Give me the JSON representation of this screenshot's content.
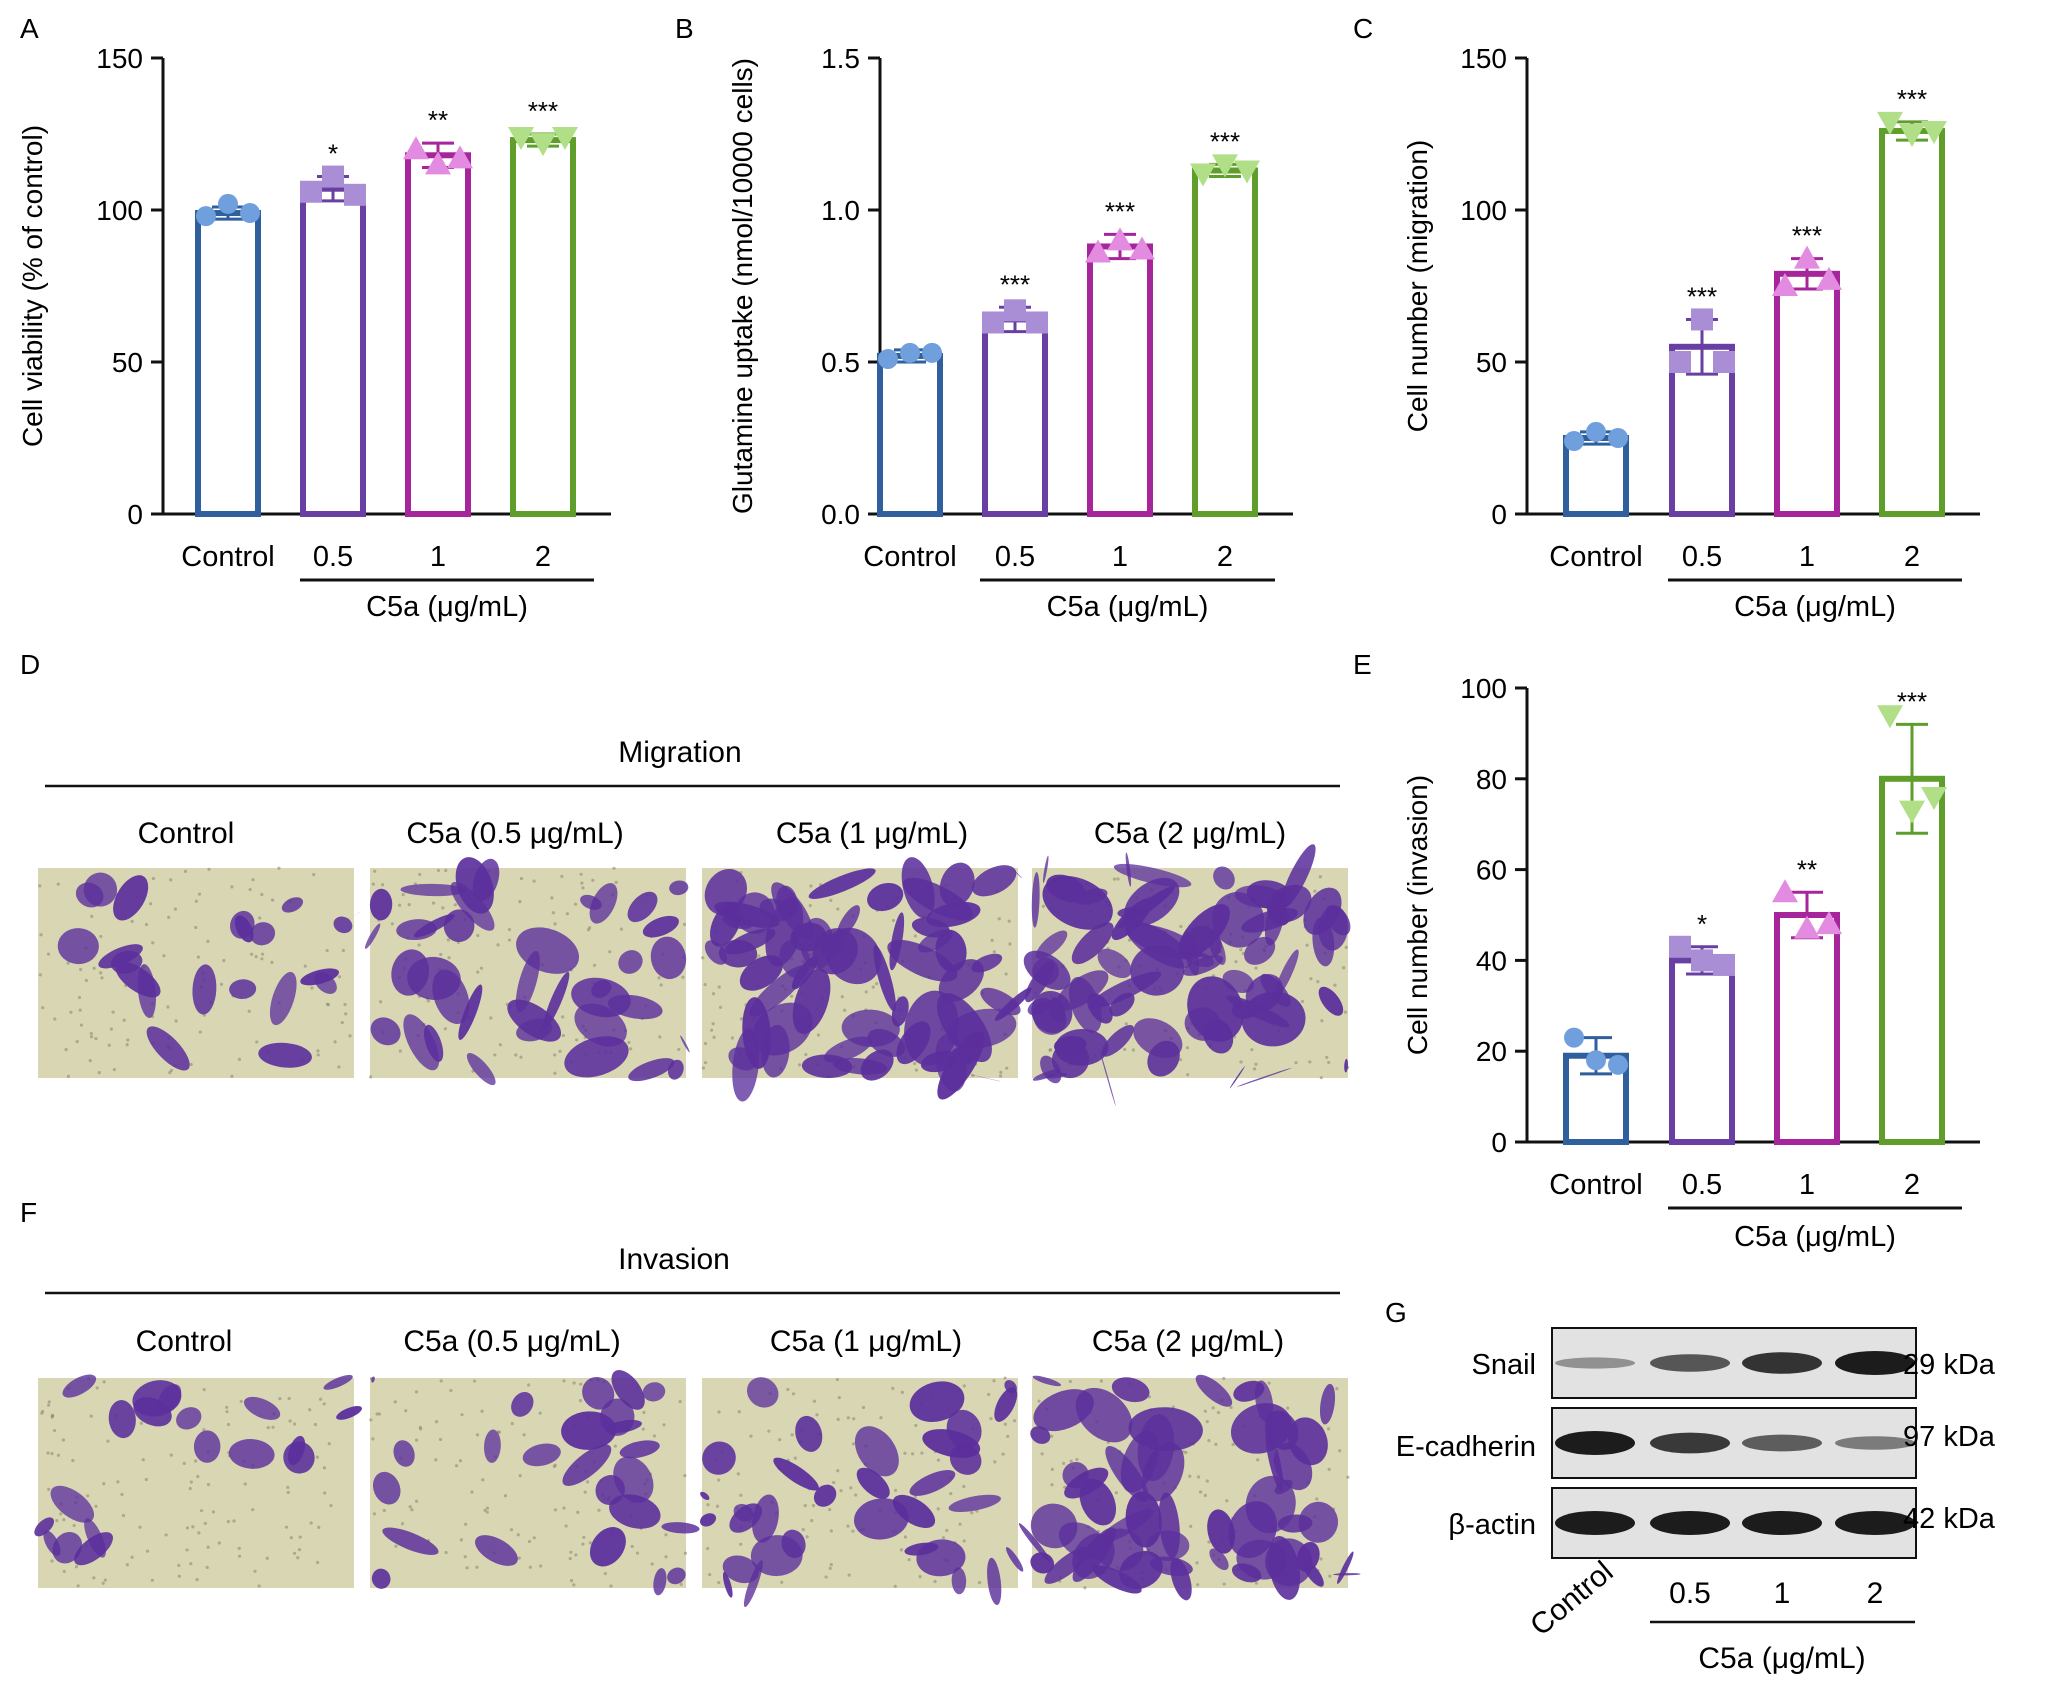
{
  "chart_data": [
    {
      "panel": "A",
      "type": "bar",
      "ylabel": "Cell viability (% of control)",
      "ylim": [
        0,
        150
      ],
      "yticks": [
        0,
        50,
        100,
        150
      ],
      "categories": [
        "Control",
        "0.5",
        "1",
        "2"
      ],
      "group_label": "C5a (μg/mL)",
      "values": [
        99,
        107,
        118,
        123
      ],
      "errors": [
        2,
        4,
        4,
        2
      ],
      "points": [
        [
          98,
          102,
          99
        ],
        [
          106,
          111,
          105
        ],
        [
          120,
          115,
          117
        ],
        [
          124,
          122,
          124
        ]
      ],
      "significance": [
        "",
        "*",
        "**",
        "***"
      ]
    },
    {
      "panel": "B",
      "type": "bar",
      "ylabel": "Glutamine uptake (nmol/10000 cells)",
      "ylim": [
        0,
        1.5
      ],
      "yticks": [
        "0.0",
        "0.5",
        "1.0",
        "1.5"
      ],
      "categories": [
        "Control",
        "0.5",
        "1",
        "2"
      ],
      "group_label": "C5a (μg/mL)",
      "values": [
        0.52,
        0.64,
        0.88,
        1.13
      ],
      "errors": [
        0.02,
        0.04,
        0.04,
        0.02
      ],
      "points": [
        [
          0.51,
          0.53,
          0.53
        ],
        [
          0.63,
          0.67,
          0.63
        ],
        [
          0.86,
          0.9,
          0.87
        ],
        [
          1.12,
          1.15,
          1.13
        ]
      ],
      "significance": [
        "",
        "***",
        "***",
        "***"
      ]
    },
    {
      "panel": "C",
      "type": "bar",
      "ylabel": "Cell number (migration)",
      "ylim": [
        0,
        150
      ],
      "yticks": [
        0,
        50,
        100,
        150
      ],
      "categories": [
        "Control",
        "0.5",
        "1",
        "2"
      ],
      "group_label": "C5a (μg/mL)",
      "values": [
        25,
        55,
        79,
        126
      ],
      "errors": [
        2,
        9,
        5,
        3
      ],
      "points": [
        [
          24,
          27,
          25
        ],
        [
          50,
          64,
          50
        ],
        [
          75,
          84,
          77
        ],
        [
          129,
          125,
          126
        ]
      ],
      "significance": [
        "",
        "***",
        "***",
        "***"
      ]
    },
    {
      "panel": "E",
      "type": "bar",
      "ylabel": "Cell number (invasion)",
      "ylim": [
        0,
        100
      ],
      "yticks": [
        0,
        20,
        40,
        60,
        80,
        100
      ],
      "categories": [
        "Control",
        "0.5",
        "1",
        "2"
      ],
      "group_label": "C5a (μg/mL)",
      "values": [
        19,
        40,
        50,
        80
      ],
      "errors": [
        4,
        3,
        5,
        12
      ],
      "points": [
        [
          23,
          18,
          17
        ],
        [
          43,
          40,
          39
        ],
        [
          55,
          47,
          48
        ],
        [
          94,
          73,
          76
        ]
      ],
      "significance": [
        "",
        "*",
        "**",
        "***"
      ]
    }
  ],
  "colors": {
    "control": "#2f5f9c",
    "c5a_05": "#6a3fa4",
    "c5a_1": "#a6259b",
    "c5a_2": "#5f9e2a",
    "ctrl_marker": "#6f9fdc",
    "m05_marker": "#a98ed6",
    "m1_marker": "#e38be0",
    "m2_marker": "#b1df88",
    "stain": "#5b2f9c",
    "membrane": "#d9d6b4"
  },
  "panels": {
    "A": {
      "label": "A"
    },
    "B": {
      "label": "B"
    },
    "C": {
      "label": "C"
    },
    "D": {
      "label": "D",
      "title": "Migration",
      "images": [
        "Control",
        "C5a (0.5 μg/mL)",
        "C5a (1 μg/mL)",
        "C5a (2 μg/mL)"
      ],
      "density": [
        0.12,
        0.3,
        0.58,
        0.7
      ]
    },
    "E": {
      "label": "E"
    },
    "F": {
      "label": "F",
      "title": "Invasion",
      "images": [
        "Control",
        "C5a (0.5 μg/mL)",
        "C5a (1 μg/mL)",
        "C5a (2 μg/mL)"
      ],
      "density": [
        0.1,
        0.16,
        0.24,
        0.48
      ]
    },
    "G": {
      "label": "G",
      "rows": [
        {
          "name": "Snail",
          "size": "29 kDa",
          "intensity": [
            0.2,
            0.6,
            0.85,
            1.0
          ]
        },
        {
          "name": "E-cadherin",
          "size": "97 kDa",
          "intensity": [
            1.0,
            0.8,
            0.55,
            0.35
          ]
        },
        {
          "name": "β-actin",
          "size": "42 kDa",
          "intensity": [
            1.0,
            1.0,
            1.0,
            1.0
          ]
        }
      ],
      "lanes": [
        "Control",
        "0.5",
        "1",
        "2"
      ],
      "group_label": "C5a (μg/mL)"
    }
  }
}
